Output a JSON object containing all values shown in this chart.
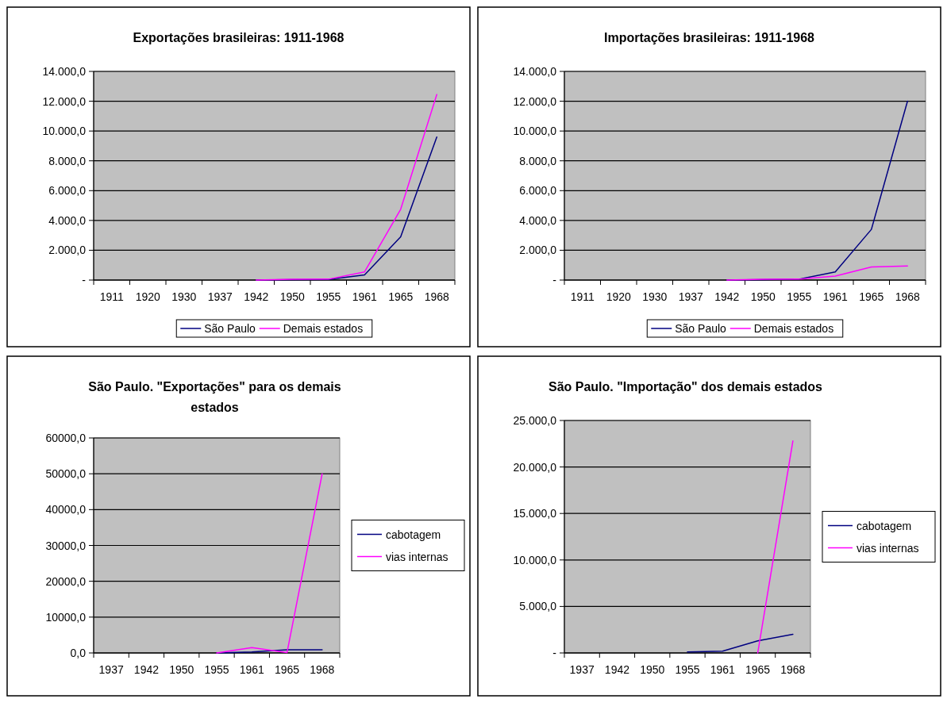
{
  "chart_data": [
    {
      "type": "line",
      "title": "Exportações brasileiras: 1911-1968",
      "categories": [
        "1911",
        "1920",
        "1930",
        "1937",
        "1942",
        "1950",
        "1955",
        "1961",
        "1965",
        "1968"
      ],
      "series": [
        {
          "name": "São Paulo",
          "color": "#000080",
          "values": [
            null,
            null,
            null,
            null,
            0,
            30,
            40,
            350,
            2900,
            9600
          ]
        },
        {
          "name": "Demais estados",
          "color": "#ff00ff",
          "values": [
            null,
            null,
            null,
            null,
            0,
            50,
            60,
            550,
            4750,
            12450
          ]
        }
      ],
      "ylim": [
        0,
        14000
      ],
      "yticks": [
        {
          "value": 0,
          "label": "-"
        },
        {
          "value": 2000,
          "label": "2.000,0"
        },
        {
          "value": 4000,
          "label": "4.000,0"
        },
        {
          "value": 6000,
          "label": "6.000,0"
        },
        {
          "value": 8000,
          "label": "8.000,0"
        },
        {
          "value": 10000,
          "label": "10.000,0"
        },
        {
          "value": 12000,
          "label": "12.000,0"
        },
        {
          "value": 14000,
          "label": "14.000,0"
        }
      ],
      "grid": "y",
      "legend": "bottom"
    },
    {
      "type": "line",
      "title": "Importações brasileiras: 1911-1968",
      "categories": [
        "1911",
        "1920",
        "1930",
        "1937",
        "1942",
        "1950",
        "1955",
        "1961",
        "1965",
        "1968"
      ],
      "series": [
        {
          "name": "São Paulo",
          "color": "#000080",
          "values": [
            null,
            null,
            null,
            null,
            0,
            30,
            60,
            550,
            3400,
            12000
          ]
        },
        {
          "name": "Demais estados",
          "color": "#ff00ff",
          "values": [
            null,
            null,
            null,
            null,
            0,
            50,
            60,
            270,
            880,
            950
          ]
        }
      ],
      "ylim": [
        0,
        14000
      ],
      "yticks": [
        {
          "value": 0,
          "label": "-"
        },
        {
          "value": 2000,
          "label": "2.000,0"
        },
        {
          "value": 4000,
          "label": "4.000,0"
        },
        {
          "value": 6000,
          "label": "6.000,0"
        },
        {
          "value": 8000,
          "label": "8.000,0"
        },
        {
          "value": 10000,
          "label": "10.000,0"
        },
        {
          "value": 12000,
          "label": "12.000,0"
        },
        {
          "value": 14000,
          "label": "14.000,0"
        }
      ],
      "grid": "y",
      "legend": "bottom"
    },
    {
      "type": "line",
      "title": "São Paulo. \"Exportações\" para os demais estados",
      "categories": [
        "1937",
        "1942",
        "1950",
        "1955",
        "1961",
        "1965",
        "1968"
      ],
      "series": [
        {
          "name": "cabotagem",
          "color": "#000080",
          "values": [
            null,
            null,
            null,
            0,
            300,
            900,
            900
          ]
        },
        {
          "name": "vias internas",
          "color": "#ff00ff",
          "values": [
            null,
            null,
            null,
            0,
            1500,
            100,
            50000
          ]
        }
      ],
      "ylim": [
        0,
        60000
      ],
      "yticks": [
        {
          "value": 0,
          "label": "0,0"
        },
        {
          "value": 10000,
          "label": "10000,0"
        },
        {
          "value": 20000,
          "label": "20000,0"
        },
        {
          "value": 30000,
          "label": "30000,0"
        },
        {
          "value": 40000,
          "label": "40000,0"
        },
        {
          "value": 50000,
          "label": "50000,0"
        },
        {
          "value": 60000,
          "label": "60000,0"
        }
      ],
      "grid": "y",
      "legend": "right"
    },
    {
      "type": "line",
      "title": "São Paulo. \"Importação\" dos demais estados",
      "categories": [
        "1937",
        "1942",
        "1950",
        "1955",
        "1961",
        "1965",
        "1968"
      ],
      "series": [
        {
          "name": "cabotagem",
          "color": "#000080",
          "values": [
            null,
            null,
            null,
            100,
            200,
            1300,
            2000
          ]
        },
        {
          "name": "vias internas",
          "color": "#ff00ff",
          "values": [
            null,
            null,
            null,
            null,
            null,
            0,
            22800
          ]
        }
      ],
      "ylim": [
        0,
        25000
      ],
      "yticks": [
        {
          "value": 0,
          "label": "-"
        },
        {
          "value": 5000,
          "label": "5.000,0"
        },
        {
          "value": 10000,
          "label": "10.000,0"
        },
        {
          "value": 15000,
          "label": "15.000,0"
        },
        {
          "value": 20000,
          "label": "20.000,0"
        },
        {
          "value": 25000,
          "label": "25.000,0"
        }
      ],
      "grid": "y",
      "legend": "right"
    }
  ]
}
